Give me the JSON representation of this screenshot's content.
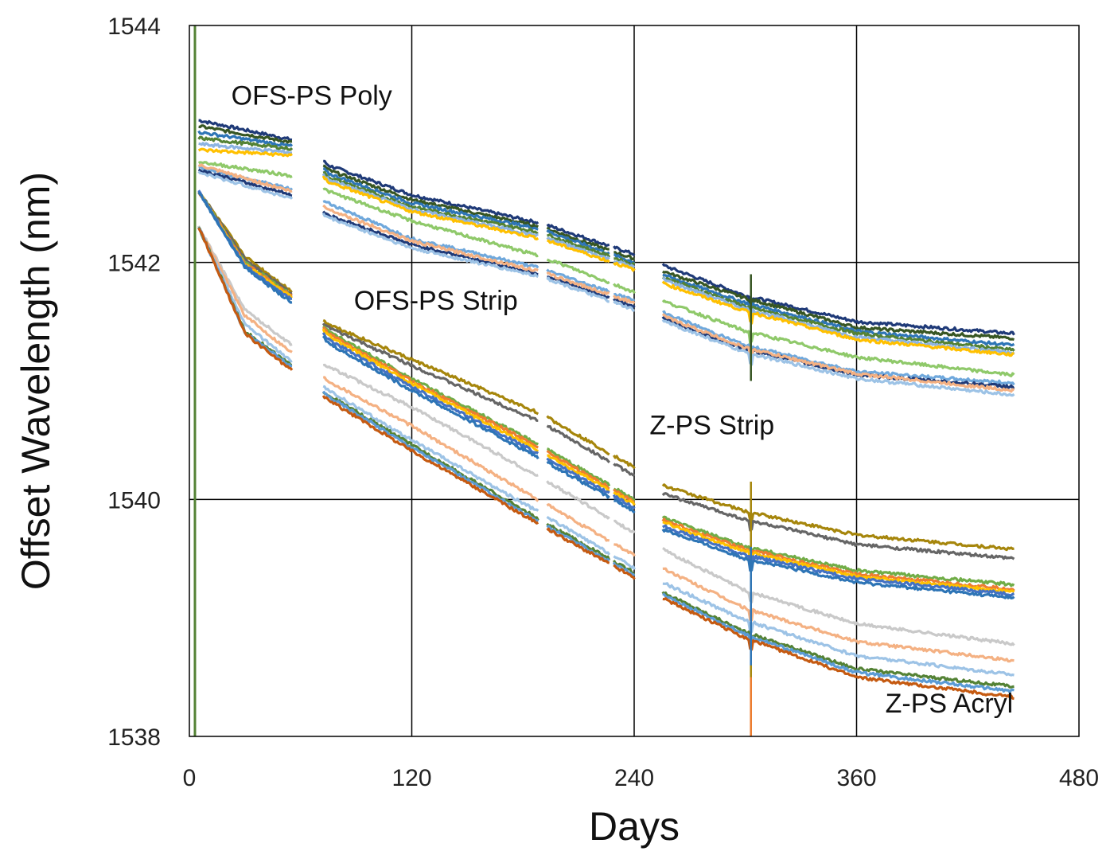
{
  "chart_data": {
    "type": "line",
    "title": "",
    "xlabel": "Days",
    "ylabel": "Offset Wavelength (nm)",
    "xlim": [
      0,
      480
    ],
    "ylim": [
      1538,
      1544
    ],
    "xticks": [
      0,
      120,
      240,
      360,
      480
    ],
    "yticks": [
      1538,
      1540,
      1542,
      1544
    ],
    "grid": true,
    "legend": "none",
    "gaps": [
      [
        56,
        72
      ],
      [
        189,
        193
      ],
      [
        227,
        229
      ],
      [
        241,
        255
      ]
    ],
    "event_day": 303,
    "annotations": [
      {
        "text": "OFS-PS Poly",
        "x": 66,
        "y": 1543.33
      },
      {
        "text": "OFS-PS Strip",
        "x": 133,
        "y": 1541.6
      },
      {
        "text": "Z-PS Strip",
        "x": 282,
        "y": 1540.55
      },
      {
        "text": "Z-PS Acryl",
        "x": 410,
        "y": 1538.2
      }
    ],
    "series": [
      {
        "group": "OFS-PS Poly",
        "color": "#1f3a78",
        "values": [
          [
            5,
            1543.2
          ],
          [
            60,
            1543.02
          ],
          [
            75,
            1542.82
          ],
          [
            120,
            1542.57
          ],
          [
            190,
            1542.33
          ],
          [
            240,
            1542.07
          ],
          [
            260,
            1541.95
          ],
          [
            300,
            1541.72
          ],
          [
            360,
            1541.5
          ],
          [
            445,
            1541.4
          ]
        ]
      },
      {
        "group": "OFS-PS Poly",
        "color": "#375623",
        "values": [
          [
            5,
            1543.15
          ],
          [
            60,
            1543.0
          ],
          [
            75,
            1542.78
          ],
          [
            120,
            1542.53
          ],
          [
            190,
            1542.3
          ],
          [
            240,
            1542.03
          ],
          [
            260,
            1541.9
          ],
          [
            300,
            1541.7
          ],
          [
            360,
            1541.45
          ],
          [
            445,
            1541.36
          ]
        ]
      },
      {
        "group": "OFS-PS Poly",
        "color": "#2e75b6",
        "values": [
          [
            5,
            1543.1
          ],
          [
            60,
            1542.97
          ],
          [
            75,
            1542.75
          ],
          [
            120,
            1542.5
          ],
          [
            190,
            1542.28
          ],
          [
            240,
            1542.0
          ],
          [
            260,
            1541.87
          ],
          [
            300,
            1541.66
          ],
          [
            360,
            1541.42
          ],
          [
            445,
            1541.3
          ]
        ]
      },
      {
        "group": "OFS-PS Poly",
        "color": "#548235",
        "values": [
          [
            5,
            1543.05
          ],
          [
            60,
            1542.95
          ],
          [
            75,
            1542.72
          ],
          [
            120,
            1542.47
          ],
          [
            190,
            1542.25
          ],
          [
            240,
            1541.98
          ],
          [
            260,
            1541.85
          ],
          [
            300,
            1541.63
          ],
          [
            360,
            1541.4
          ],
          [
            445,
            1541.26
          ]
        ]
      },
      {
        "group": "OFS-PS Poly",
        "color": "#8db4e2",
        "values": [
          [
            5,
            1543.0
          ],
          [
            60,
            1542.92
          ],
          [
            75,
            1542.7
          ],
          [
            120,
            1542.45
          ],
          [
            190,
            1542.22
          ],
          [
            240,
            1541.96
          ],
          [
            260,
            1541.83
          ],
          [
            300,
            1541.61
          ],
          [
            360,
            1541.37
          ],
          [
            445,
            1541.24
          ]
        ]
      },
      {
        "group": "OFS-PS Poly",
        "color": "#ffc000",
        "values": [
          [
            5,
            1542.95
          ],
          [
            60,
            1542.9
          ],
          [
            75,
            1542.68
          ],
          [
            120,
            1542.43
          ],
          [
            190,
            1542.2
          ],
          [
            240,
            1541.94
          ],
          [
            260,
            1541.8
          ],
          [
            300,
            1541.59
          ],
          [
            360,
            1541.35
          ],
          [
            445,
            1541.22
          ]
        ]
      },
      {
        "group": "OFS-PS Strip",
        "color": "#8fc96a",
        "values": [
          [
            5,
            1542.85
          ],
          [
            60,
            1542.72
          ],
          [
            75,
            1542.6
          ],
          [
            120,
            1542.35
          ],
          [
            190,
            1542.05
          ],
          [
            240,
            1541.75
          ],
          [
            260,
            1541.65
          ],
          [
            300,
            1541.42
          ],
          [
            360,
            1541.2
          ],
          [
            445,
            1541.05
          ]
        ]
      },
      {
        "group": "OFS-PS Strip",
        "color": "#6fa8dc",
        "values": [
          [
            5,
            1542.8
          ],
          [
            60,
            1542.6
          ],
          [
            75,
            1542.5
          ],
          [
            120,
            1542.2
          ],
          [
            190,
            1541.95
          ],
          [
            240,
            1541.68
          ],
          [
            260,
            1541.55
          ],
          [
            300,
            1541.3
          ],
          [
            360,
            1541.08
          ],
          [
            445,
            1540.98
          ]
        ]
      },
      {
        "group": "OFS-PS Strip",
        "color": "#1f3a78",
        "values": [
          [
            5,
            1542.78
          ],
          [
            60,
            1542.55
          ],
          [
            75,
            1542.4
          ],
          [
            120,
            1542.15
          ],
          [
            190,
            1541.9
          ],
          [
            240,
            1541.63
          ],
          [
            260,
            1541.5
          ],
          [
            300,
            1541.27
          ],
          [
            360,
            1541.05
          ],
          [
            445,
            1540.95
          ]
        ]
      },
      {
        "group": "OFS-PS Strip",
        "color": "#f4b183",
        "values": [
          [
            5,
            1542.82
          ],
          [
            60,
            1542.58
          ],
          [
            75,
            1542.45
          ],
          [
            120,
            1542.18
          ],
          [
            190,
            1541.92
          ],
          [
            240,
            1541.66
          ],
          [
            260,
            1541.52
          ],
          [
            300,
            1541.28
          ],
          [
            360,
            1541.06
          ],
          [
            445,
            1540.92
          ]
        ]
      },
      {
        "group": "OFS-PS Strip",
        "color": "#9dc3e6",
        "values": [
          [
            5,
            1542.76
          ],
          [
            60,
            1542.52
          ],
          [
            75,
            1542.38
          ],
          [
            120,
            1542.12
          ],
          [
            190,
            1541.88
          ],
          [
            240,
            1541.6
          ],
          [
            260,
            1541.48
          ],
          [
            300,
            1541.24
          ],
          [
            360,
            1541.02
          ],
          [
            445,
            1540.88
          ]
        ]
      },
      {
        "group": "Z-PS Strip",
        "color": "#a6860c",
        "values": [
          [
            5,
            1542.6
          ],
          [
            30,
            1542.05
          ],
          [
            60,
            1541.7
          ],
          [
            75,
            1541.48
          ],
          [
            120,
            1541.18
          ],
          [
            190,
            1540.72
          ],
          [
            240,
            1540.27
          ],
          [
            255,
            1540.12
          ],
          [
            300,
            1539.9
          ],
          [
            360,
            1539.7
          ],
          [
            445,
            1539.58
          ]
        ]
      },
      {
        "group": "Z-PS Strip",
        "color": "#666666",
        "values": [
          [
            5,
            1542.6
          ],
          [
            30,
            1542.03
          ],
          [
            60,
            1541.68
          ],
          [
            75,
            1541.45
          ],
          [
            120,
            1541.13
          ],
          [
            190,
            1540.65
          ],
          [
            240,
            1540.2
          ],
          [
            255,
            1540.05
          ],
          [
            300,
            1539.83
          ],
          [
            360,
            1539.62
          ],
          [
            445,
            1539.5
          ]
        ]
      },
      {
        "group": "Z-PS Strip",
        "color": "#70ad47",
        "values": [
          [
            5,
            1542.6
          ],
          [
            30,
            1542.0
          ],
          [
            60,
            1541.67
          ],
          [
            75,
            1541.42
          ],
          [
            120,
            1541.02
          ],
          [
            190,
            1540.45
          ],
          [
            240,
            1540.0
          ],
          [
            255,
            1539.85
          ],
          [
            300,
            1539.6
          ],
          [
            360,
            1539.4
          ],
          [
            445,
            1539.28
          ]
        ]
      },
      {
        "group": "Z-PS Strip",
        "color": "#ed7d31",
        "values": [
          [
            5,
            1542.6
          ],
          [
            30,
            1541.99
          ],
          [
            60,
            1541.66
          ],
          [
            75,
            1541.4
          ],
          [
            120,
            1541.0
          ],
          [
            190,
            1540.43
          ],
          [
            240,
            1539.98
          ],
          [
            255,
            1539.83
          ],
          [
            300,
            1539.58
          ],
          [
            360,
            1539.37
          ],
          [
            445,
            1539.24
          ]
        ]
      },
      {
        "group": "Z-PS Strip",
        "color": "#ffc000",
        "values": [
          [
            5,
            1542.6
          ],
          [
            30,
            1541.98
          ],
          [
            60,
            1541.65
          ],
          [
            75,
            1541.38
          ],
          [
            120,
            1540.98
          ],
          [
            190,
            1540.4
          ],
          [
            240,
            1539.96
          ],
          [
            255,
            1539.81
          ],
          [
            300,
            1539.56
          ],
          [
            360,
            1539.35
          ],
          [
            445,
            1539.22
          ]
        ]
      },
      {
        "group": "Z-PS Strip",
        "color": "#4472c4",
        "values": [
          [
            5,
            1542.6
          ],
          [
            30,
            1541.97
          ],
          [
            60,
            1541.63
          ],
          [
            75,
            1541.35
          ],
          [
            120,
            1540.95
          ],
          [
            190,
            1540.37
          ],
          [
            240,
            1539.93
          ],
          [
            255,
            1539.78
          ],
          [
            300,
            1539.53
          ],
          [
            360,
            1539.33
          ],
          [
            445,
            1539.2
          ]
        ]
      },
      {
        "group": "Z-PS Strip",
        "color": "#2e75b6",
        "values": [
          [
            5,
            1542.6
          ],
          [
            30,
            1541.96
          ],
          [
            60,
            1541.6
          ],
          [
            75,
            1541.32
          ],
          [
            120,
            1540.92
          ],
          [
            190,
            1540.34
          ],
          [
            240,
            1539.9
          ],
          [
            255,
            1539.75
          ],
          [
            300,
            1539.5
          ],
          [
            360,
            1539.3
          ],
          [
            445,
            1539.17
          ]
        ]
      },
      {
        "group": "Z-PS Acryl",
        "color": "#c9c9c9",
        "values": [
          [
            5,
            1542.3
          ],
          [
            30,
            1541.6
          ],
          [
            60,
            1541.25
          ],
          [
            75,
            1541.12
          ],
          [
            120,
            1540.78
          ],
          [
            190,
            1540.18
          ],
          [
            240,
            1539.72
          ],
          [
            255,
            1539.58
          ],
          [
            300,
            1539.23
          ],
          [
            360,
            1538.95
          ],
          [
            445,
            1538.78
          ]
        ]
      },
      {
        "group": "Z-PS Acryl",
        "color": "#f4b183",
        "values": [
          [
            5,
            1542.3
          ],
          [
            30,
            1541.55
          ],
          [
            60,
            1541.18
          ],
          [
            75,
            1541.0
          ],
          [
            120,
            1540.62
          ],
          [
            190,
            1539.98
          ],
          [
            240,
            1539.53
          ],
          [
            255,
            1539.42
          ],
          [
            300,
            1539.08
          ],
          [
            360,
            1538.8
          ],
          [
            445,
            1538.64
          ]
        ]
      },
      {
        "group": "Z-PS Acryl",
        "color": "#9dc3e6",
        "values": [
          [
            5,
            1542.3
          ],
          [
            30,
            1541.48
          ],
          [
            60,
            1541.1
          ],
          [
            75,
            1540.92
          ],
          [
            120,
            1540.5
          ],
          [
            190,
            1539.88
          ],
          [
            240,
            1539.42
          ],
          [
            255,
            1539.3
          ],
          [
            300,
            1538.98
          ],
          [
            360,
            1538.68
          ],
          [
            445,
            1538.52
          ]
        ]
      },
      {
        "group": "Z-PS Acryl",
        "color": "#548235",
        "values": [
          [
            5,
            1542.3
          ],
          [
            30,
            1541.42
          ],
          [
            60,
            1541.07
          ],
          [
            75,
            1540.88
          ],
          [
            120,
            1540.46
          ],
          [
            190,
            1539.82
          ],
          [
            240,
            1539.38
          ],
          [
            255,
            1539.22
          ],
          [
            300,
            1538.88
          ],
          [
            360,
            1538.57
          ],
          [
            445,
            1538.42
          ]
        ]
      },
      {
        "group": "Z-PS Acryl",
        "color": "#5b9bd5",
        "values": [
          [
            5,
            1542.3
          ],
          [
            30,
            1541.41
          ],
          [
            60,
            1541.06
          ],
          [
            75,
            1540.87
          ],
          [
            120,
            1540.44
          ],
          [
            190,
            1539.8
          ],
          [
            240,
            1539.36
          ],
          [
            255,
            1539.2
          ],
          [
            300,
            1538.86
          ],
          [
            360,
            1538.54
          ],
          [
            445,
            1538.38
          ]
        ]
      },
      {
        "group": "Z-PS Acryl",
        "color": "#c55a11",
        "values": [
          [
            5,
            1542.3
          ],
          [
            30,
            1541.4
          ],
          [
            60,
            1541.03
          ],
          [
            75,
            1540.84
          ],
          [
            120,
            1540.41
          ],
          [
            190,
            1539.78
          ],
          [
            240,
            1539.34
          ],
          [
            255,
            1539.17
          ],
          [
            300,
            1538.83
          ],
          [
            360,
            1538.5
          ],
          [
            445,
            1538.33
          ]
        ]
      }
    ]
  }
}
